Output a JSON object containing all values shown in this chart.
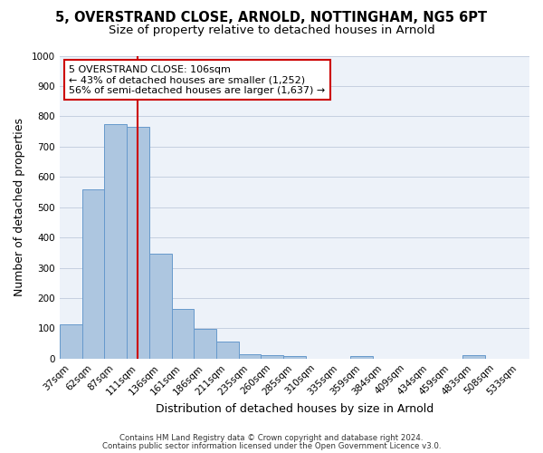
{
  "title": "5, OVERSTRAND CLOSE, ARNOLD, NOTTINGHAM, NG5 6PT",
  "subtitle": "Size of property relative to detached houses in Arnold",
  "xlabel": "Distribution of detached houses by size in Arnold",
  "ylabel": "Number of detached properties",
  "bar_values": [
    113,
    560,
    775,
    765,
    345,
    163,
    98,
    55,
    15,
    12,
    7,
    0,
    0,
    8,
    0,
    0,
    0,
    0,
    12,
    0,
    0
  ],
  "x_tick_labels": [
    "37sqm",
    "62sqm",
    "87sqm",
    "111sqm",
    "136sqm",
    "161sqm",
    "186sqm",
    "211sqm",
    "235sqm",
    "260sqm",
    "285sqm",
    "310sqm",
    "335sqm",
    "359sqm",
    "384sqm",
    "409sqm",
    "434sqm",
    "459sqm",
    "483sqm",
    "508sqm",
    "533sqm"
  ],
  "bar_color": "#adc6e0",
  "bar_edge_color": "#6699cc",
  "vline_index": 3,
  "vline_color": "#cc0000",
  "ylim": [
    0,
    1000
  ],
  "yticks": [
    0,
    100,
    200,
    300,
    400,
    500,
    600,
    700,
    800,
    900,
    1000
  ],
  "annotation_title": "5 OVERSTRAND CLOSE: 106sqm",
  "annotation_line1": "← 43% of detached houses are smaller (1,252)",
  "annotation_line2": "56% of semi-detached houses are larger (1,637) →",
  "annotation_box_color": "#ffffff",
  "annotation_box_edge": "#cc0000",
  "footer1": "Contains HM Land Registry data © Crown copyright and database right 2024.",
  "footer2": "Contains public sector information licensed under the Open Government Licence v3.0.",
  "bg_color": "#edf2f9",
  "grid_color": "#c5cfe0",
  "title_fontsize": 10.5,
  "subtitle_fontsize": 9.5,
  "tick_label_fontsize": 7.5,
  "ylabel_fontsize": 9,
  "xlabel_fontsize": 9,
  "annotation_fontsize": 8.0,
  "footer_fontsize": 6.2
}
